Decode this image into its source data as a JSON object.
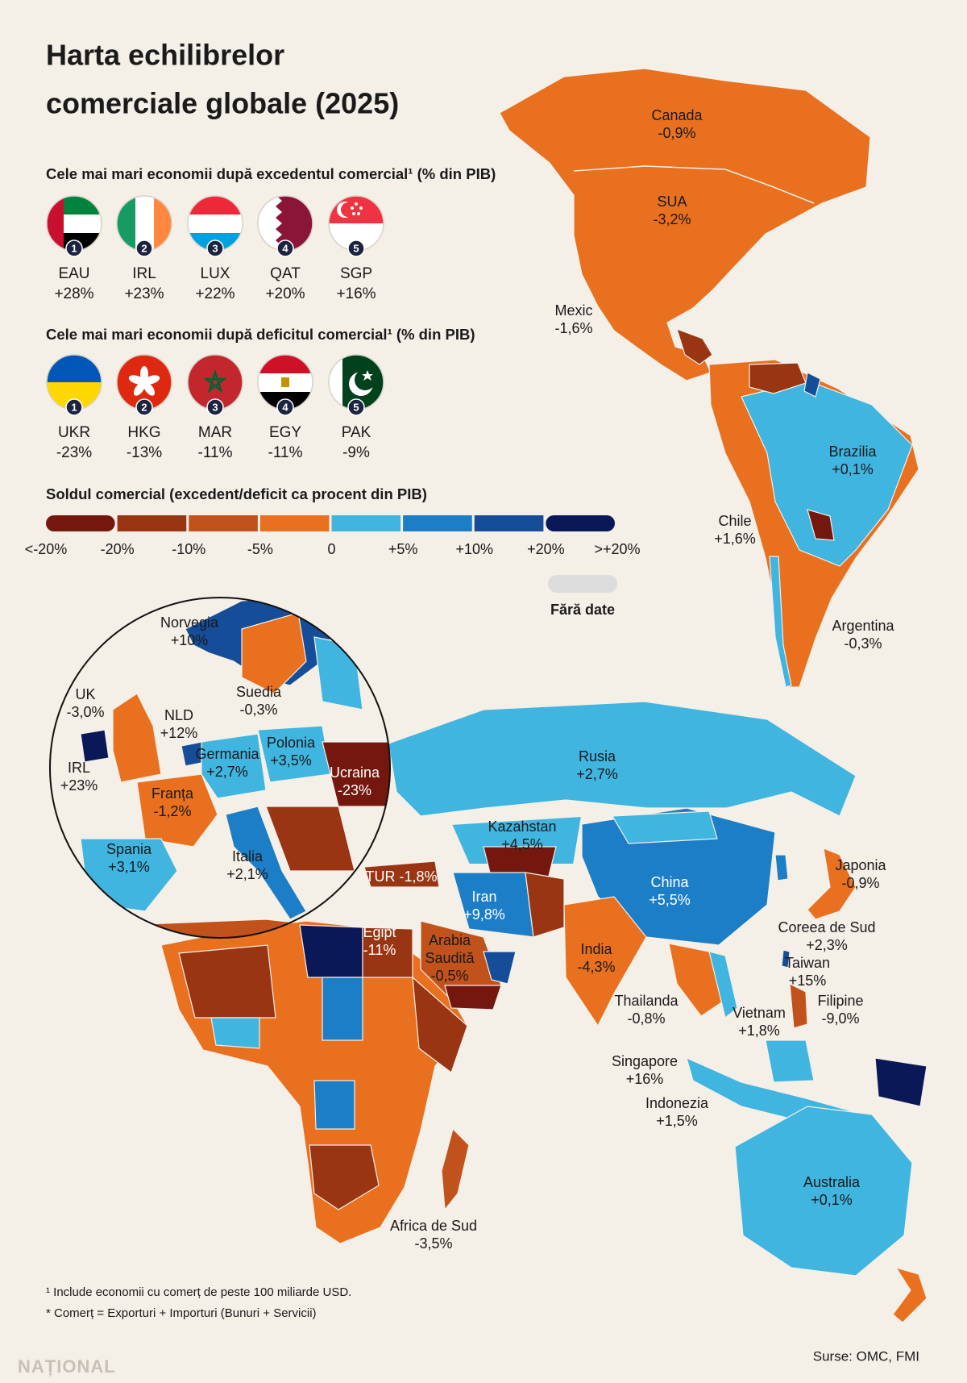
{
  "header": {
    "title_lines": [
      "Harta echilibrelor",
      "comerciale globale (2025)"
    ]
  },
  "surplus": {
    "heading": "Cele mai mari economii după excedentul comercial¹ (% din PIB)",
    "items": [
      {
        "rank": "1",
        "code": "EAU",
        "value": "+28%"
      },
      {
        "rank": "2",
        "code": "IRL",
        "value": "+23%"
      },
      {
        "rank": "3",
        "code": "LUX",
        "value": "+22%"
      },
      {
        "rank": "4",
        "code": "QAT",
        "value": "+20%"
      },
      {
        "rank": "5",
        "code": "SGP",
        "value": "+16%"
      }
    ]
  },
  "deficit": {
    "heading": "Cele mai mari economii după deficitul comercial¹ (% din PIB)",
    "items": [
      {
        "rank": "1",
        "code": "UKR",
        "value": "-23%"
      },
      {
        "rank": "2",
        "code": "HKG",
        "value": "-13%"
      },
      {
        "rank": "3",
        "code": "MAR",
        "value": "-11%"
      },
      {
        "rank": "4",
        "code": "EGY",
        "value": "-11%"
      },
      {
        "rank": "5",
        "code": "PAK",
        "value": "-9%"
      }
    ]
  },
  "legend": {
    "title": "Soldul comercial (excedent/deficit ca procent din PIB)",
    "labels": [
      "<-20%",
      "-20%",
      "-10%",
      "-5%",
      "0",
      "+5%",
      "+10%",
      "+20%",
      ">+20%"
    ],
    "colors": [
      "#74170f",
      "#9a3514",
      "#c2521b",
      "#e8701f",
      "#3fb5e0",
      "#1c7ec6",
      "#164d98",
      "#0b1858"
    ],
    "no_data_label": "Fără date",
    "no_data_color": "#dcdcdc"
  },
  "map_labels": [
    {
      "lines": [
        "Canada",
        "-0,9%"
      ]
    },
    {
      "lines": [
        "SUA",
        "-3,2%"
      ]
    },
    {
      "lines": [
        "Mexic",
        "-1,6%"
      ]
    },
    {
      "lines": [
        "Brazilia",
        "+0,1%"
      ]
    },
    {
      "lines": [
        "Chile",
        "+1,6%"
      ]
    },
    {
      "lines": [
        "Argentina",
        "-0,3%"
      ]
    },
    {
      "lines": [
        "Norvegia",
        "+10%"
      ]
    },
    {
      "lines": [
        "Suedia",
        "-0,3%"
      ]
    },
    {
      "lines": [
        "UK",
        "-3,0%"
      ]
    },
    {
      "lines": [
        "NLD",
        "+12%"
      ]
    },
    {
      "lines": [
        "IRL",
        "+23%"
      ]
    },
    {
      "lines": [
        "Germania",
        "+2,7%"
      ]
    },
    {
      "lines": [
        "Polonia",
        "+3,5%"
      ]
    },
    {
      "lines": [
        "Ucraina",
        "-23%"
      ]
    },
    {
      "lines": [
        "Franța",
        "-1,2%"
      ]
    },
    {
      "lines": [
        "Spania",
        "+3,1%"
      ]
    },
    {
      "lines": [
        "Italia",
        "+2,1%"
      ]
    },
    {
      "lines": [
        "Rusia",
        "+2,7%"
      ]
    },
    {
      "lines": [
        "Kazahstan",
        "+4,5%"
      ]
    },
    {
      "lines": [
        "TUR -1,8%"
      ]
    },
    {
      "lines": [
        "Iran",
        "+9,8%"
      ]
    },
    {
      "lines": [
        "China",
        "+5,5%"
      ]
    },
    {
      "lines": [
        "Japonia",
        "-0,9%"
      ]
    },
    {
      "lines": [
        "Egipt",
        "-11%"
      ]
    },
    {
      "lines": [
        "Arabia",
        "Saudită",
        "-0,5%"
      ]
    },
    {
      "lines": [
        "India",
        "-4,3%"
      ]
    },
    {
      "lines": [
        "Coreea de Sud",
        "+2,3%"
      ]
    },
    {
      "lines": [
        "Taiwan",
        "+15%"
      ]
    },
    {
      "lines": [
        "Filipine",
        "-9,0%"
      ]
    },
    {
      "lines": [
        "Thailanda",
        "-0,8%"
      ]
    },
    {
      "lines": [
        "Vietnam",
        "+1,8%"
      ]
    },
    {
      "lines": [
        "Singapore",
        "+16%"
      ]
    },
    {
      "lines": [
        "Indonezia",
        "+1,5%"
      ]
    },
    {
      "lines": [
        "Australia",
        "+0,1%"
      ]
    },
    {
      "lines": [
        "Africa de Sud",
        "-3,5%"
      ]
    }
  ],
  "footnotes": [
    "¹ Include economii cu comerț de peste 100 miliarde USD.",
    "* Comerț = Exporturi + Importuri (Bunuri + Servicii)"
  ],
  "source": "Surse: OMC, FMI",
  "brand": "NAȚIONAL"
}
